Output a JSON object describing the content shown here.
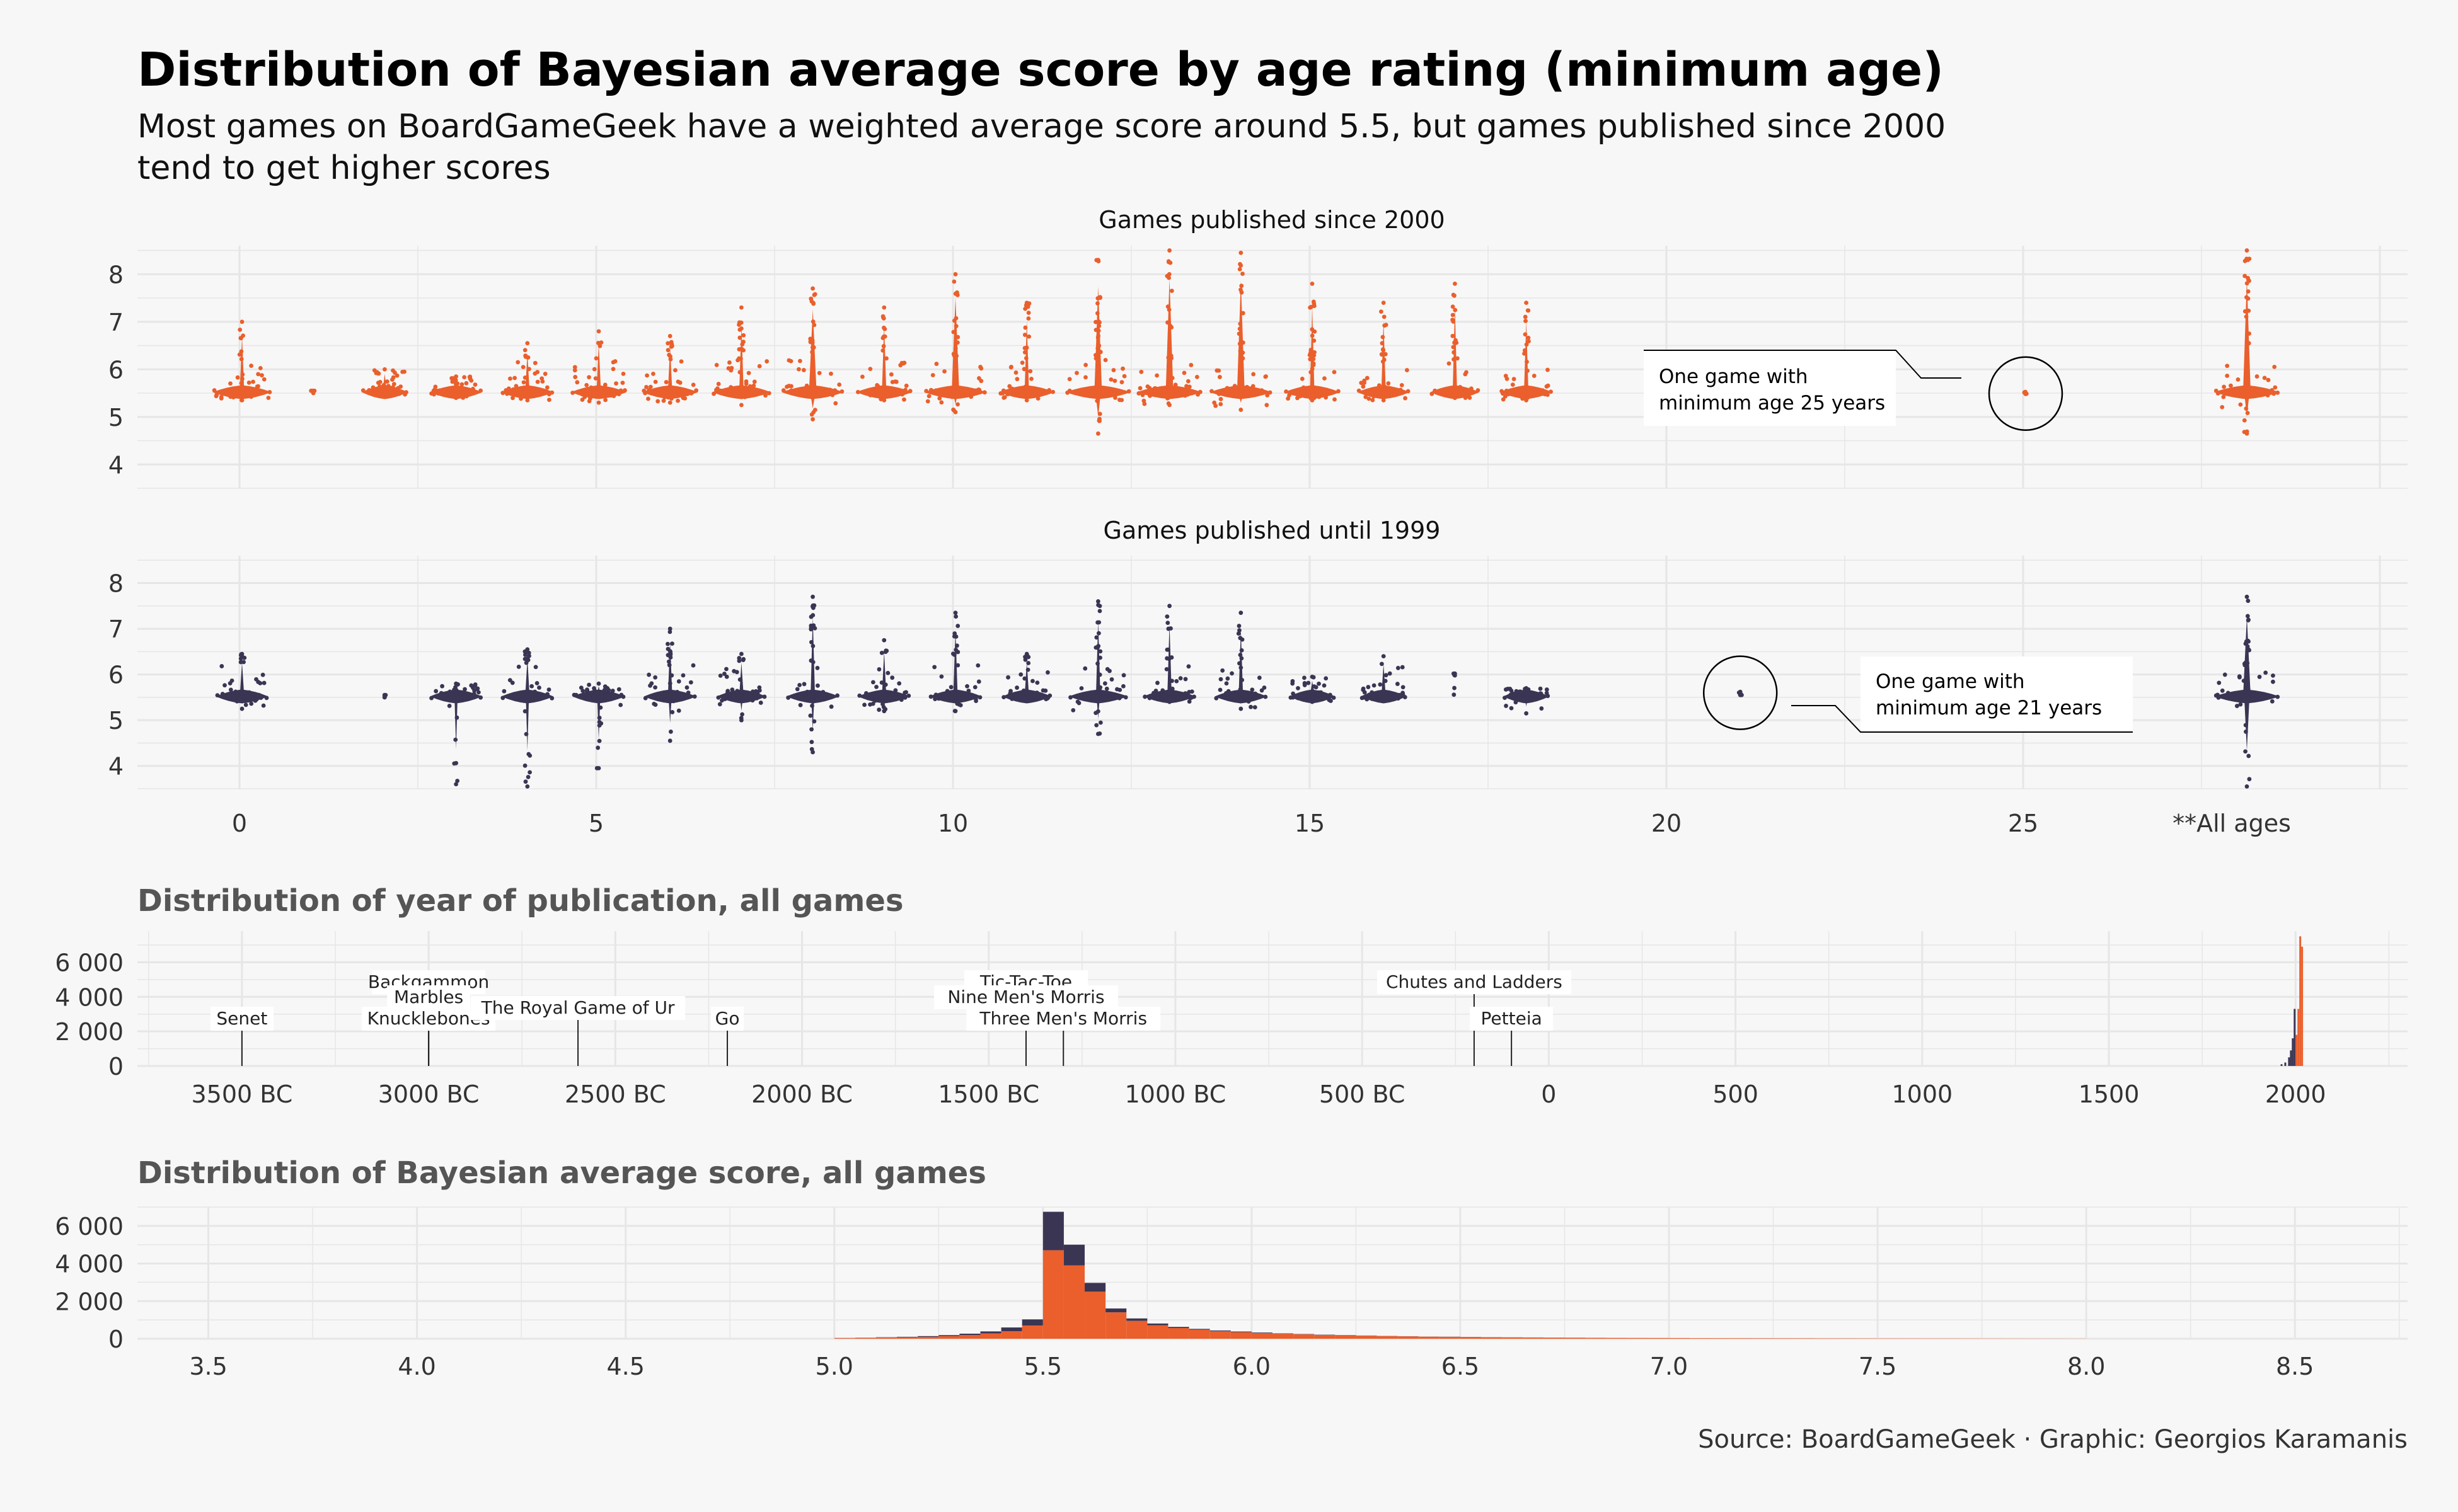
{
  "title": "Distribution of Bayesian average score by age rating (minimum age)",
  "subtitle": "Most games on BoardGameGeek have a weighted average score around 5.5, but games published since 2000 tend to get higher scores",
  "source": "Source: BoardGameGeek · Graphic: Georgios Karamanis",
  "colors": {
    "since2000": "#ea5f2c",
    "until1999": "#3b3554",
    "grid": "#e6e6e6",
    "background": "#f7f7f7"
  },
  "chart_data": [
    {
      "type": "scatter",
      "title": "Games published since 2000",
      "y_ticks": [
        4,
        5,
        6,
        7,
        8
      ],
      "ylim": [
        3.5,
        8.6
      ],
      "x_ticks": [
        0,
        5,
        10,
        15,
        20,
        25
      ],
      "x_extra_tick": "**All ages",
      "groups": [
        {
          "age": 0,
          "max_width": 0.9,
          "min": 5.35,
          "max": 7.0
        },
        {
          "age": 1,
          "max_width": 0.1,
          "min": 5.5,
          "max": 5.55
        },
        {
          "age": 2,
          "max_width": 0.7,
          "min": 5.45,
          "max": 6.0
        },
        {
          "age": 3,
          "max_width": 0.8,
          "min": 5.4,
          "max": 5.85
        },
        {
          "age": 4,
          "max_width": 0.8,
          "min": 5.35,
          "max": 6.55
        },
        {
          "age": 5,
          "max_width": 0.85,
          "min": 5.3,
          "max": 6.8
        },
        {
          "age": 6,
          "max_width": 0.85,
          "min": 5.3,
          "max": 6.7
        },
        {
          "age": 7,
          "max_width": 0.9,
          "min": 5.25,
          "max": 7.3
        },
        {
          "age": 8,
          "max_width": 0.95,
          "min": 4.95,
          "max": 7.7
        },
        {
          "age": 9,
          "max_width": 0.85,
          "min": 5.35,
          "max": 7.3
        },
        {
          "age": 10,
          "max_width": 0.95,
          "min": 5.1,
          "max": 8.0
        },
        {
          "age": 11,
          "max_width": 0.85,
          "min": 5.35,
          "max": 7.4
        },
        {
          "age": 12,
          "max_width": 1.0,
          "min": 4.65,
          "max": 8.3
        },
        {
          "age": 13,
          "max_width": 1.0,
          "min": 5.25,
          "max": 8.5
        },
        {
          "age": 14,
          "max_width": 0.95,
          "min": 5.15,
          "max": 8.45
        },
        {
          "age": 15,
          "max_width": 0.85,
          "min": 5.35,
          "max": 7.8
        },
        {
          "age": 16,
          "max_width": 0.8,
          "min": 5.35,
          "max": 7.4
        },
        {
          "age": 17,
          "max_width": 0.75,
          "min": 5.4,
          "max": 7.8
        },
        {
          "age": 18,
          "max_width": 0.8,
          "min": 5.35,
          "max": 7.4
        },
        {
          "age": 25,
          "max_width": 0.05,
          "min": 5.48,
          "max": 5.5
        },
        {
          "age": "**All ages",
          "max_width": 1.0,
          "min": 4.65,
          "max": 8.5
        }
      ],
      "annotation": "One game with\n minimum age 25 years"
    },
    {
      "type": "scatter",
      "title": "Games published until 1999",
      "y_ticks": [
        4,
        5,
        6,
        7,
        8
      ],
      "ylim": [
        3.5,
        8.6
      ],
      "x_ticks": [
        0,
        5,
        10,
        15,
        20,
        25
      ],
      "x_extra_tick": "**All ages",
      "groups": [
        {
          "age": 0,
          "max_width": 0.8,
          "min": 5.25,
          "max": 6.45
        },
        {
          "age": 2,
          "max_width": 0.05,
          "min": 5.5,
          "max": 5.55
        },
        {
          "age": 3,
          "max_width": 0.8,
          "min": 3.6,
          "max": 5.8
        },
        {
          "age": 4,
          "max_width": 0.8,
          "min": 3.55,
          "max": 6.55
        },
        {
          "age": 5,
          "max_width": 0.8,
          "min": 3.95,
          "max": 5.8
        },
        {
          "age": 6,
          "max_width": 0.8,
          "min": 4.55,
          "max": 7.0
        },
        {
          "age": 7,
          "max_width": 0.75,
          "min": 5.0,
          "max": 6.45
        },
        {
          "age": 8,
          "max_width": 0.8,
          "min": 4.3,
          "max": 7.7
        },
        {
          "age": 9,
          "max_width": 0.8,
          "min": 5.2,
          "max": 6.75
        },
        {
          "age": 10,
          "max_width": 0.8,
          "min": 5.2,
          "max": 7.35
        },
        {
          "age": 11,
          "max_width": 0.75,
          "min": 5.45,
          "max": 6.45
        },
        {
          "age": 12,
          "max_width": 0.9,
          "min": 4.7,
          "max": 7.6
        },
        {
          "age": 13,
          "max_width": 0.8,
          "min": 5.4,
          "max": 7.5
        },
        {
          "age": 14,
          "max_width": 0.8,
          "min": 5.25,
          "max": 7.35
        },
        {
          "age": 15,
          "max_width": 0.7,
          "min": 5.4,
          "max": 5.95
        },
        {
          "age": 16,
          "max_width": 0.7,
          "min": 5.45,
          "max": 6.4
        },
        {
          "age": 17,
          "max_width": 0.05,
          "min": 5.98,
          "max": 6.02
        },
        {
          "age": 18,
          "max_width": 0.7,
          "min": 5.15,
          "max": 5.7
        },
        {
          "age": 21,
          "max_width": 0.05,
          "min": 5.58,
          "max": 5.62
        },
        {
          "age": "**All ages",
          "max_width": 1.0,
          "min": 3.55,
          "max": 7.7
        }
      ],
      "annotation": "One game with\nminimum age 21 years"
    },
    {
      "type": "bar",
      "title": "Distribution of year of publication, all games",
      "x_ticks": [
        -3500,
        -3000,
        -2500,
        -2000,
        -1500,
        -1000,
        -500,
        0,
        500,
        1000,
        1500,
        2000
      ],
      "x_tick_labels": [
        "3500 BC",
        "3000 BC",
        "2500 BC",
        "2000 BC",
        "1500 BC",
        "1000 BC",
        "500 BC",
        "0",
        "500",
        "1000",
        "1500",
        "2000"
      ],
      "xlim": [
        -3780,
        2300
      ],
      "y_ticks": [
        0,
        2000,
        4000,
        6000
      ],
      "y_tick_labels": [
        "0",
        "2 000",
        "4 000",
        "6 000"
      ],
      "ylim": [
        0,
        7800
      ],
      "series": [
        {
          "name": "until 1999",
          "x": [
            1960,
            1970,
            1980,
            1985,
            1990,
            1995
          ],
          "values": [
            100,
            200,
            500,
            900,
            1600,
            3300
          ]
        },
        {
          "name": "since 2000",
          "x": [
            2000,
            2005,
            2010,
            2015
          ],
          "values": [
            1800,
            3300,
            7500,
            6900
          ]
        }
      ],
      "annotations": [
        {
          "year": -3500,
          "label": "Senet",
          "level": 1
        },
        {
          "year": -3000,
          "label": "Backgammon",
          "level": 4
        },
        {
          "year": -3000,
          "label": "Marbles",
          "level": 3
        },
        {
          "year": -3000,
          "label": "Knucklebones",
          "level": 1
        },
        {
          "year": -2600,
          "label": "The Royal Game of Ur",
          "level": 2
        },
        {
          "year": -2200,
          "label": "Go",
          "level": 1
        },
        {
          "year": -1400,
          "label": "Tic-Tac-Toe",
          "level": 4
        },
        {
          "year": -1400,
          "label": "Nine Men's Morris",
          "level": 3
        },
        {
          "year": -1300,
          "label": "Three Men's Morris",
          "level": 1
        },
        {
          "year": -200,
          "label": "Chutes and Ladders",
          "level": 4
        },
        {
          "year": -100,
          "label": "Petteia",
          "level": 1
        }
      ]
    },
    {
      "type": "bar",
      "title": "Distribution of Bayesian average score, all games",
      "x_ticks": [
        3.5,
        4.0,
        4.5,
        5.0,
        5.5,
        6.0,
        6.5,
        7.0,
        7.5,
        8.0,
        8.5
      ],
      "x_tick_labels": [
        "3.5",
        "4.0",
        "4.5",
        "5.0",
        "5.5",
        "6.0",
        "6.5",
        "7.0",
        "7.5",
        "8.0",
        "8.5"
      ],
      "xlim": [
        3.33,
        8.77
      ],
      "y_ticks": [
        0,
        2000,
        4000,
        6000
      ],
      "y_tick_labels": [
        "0",
        "2 000",
        "4 000",
        "6 000"
      ],
      "ylim": [
        0,
        7000
      ],
      "bin_width": 0.05,
      "bins": [
        5.0,
        5.05,
        5.1,
        5.15,
        5.2,
        5.25,
        5.3,
        5.35,
        5.4,
        5.45,
        5.5,
        5.55,
        5.6,
        5.65,
        5.7,
        5.75,
        5.8,
        5.85,
        5.9,
        5.95,
        6.0,
        6.05,
        6.1,
        6.15,
        6.2,
        6.25,
        6.3,
        6.35,
        6.4,
        6.45,
        6.5,
        6.55,
        6.6,
        6.65,
        6.7,
        6.75,
        6.8,
        6.85,
        6.9,
        6.95,
        7.0,
        7.05,
        7.1,
        7.15,
        7.2,
        7.25,
        7.3,
        7.35,
        7.4,
        7.45,
        7.5,
        7.55,
        7.6,
        7.65,
        7.7,
        7.75,
        7.8,
        7.85,
        7.9,
        7.95
      ],
      "series": [
        {
          "name": "until 1999",
          "values": [
            10,
            15,
            20,
            25,
            40,
            55,
            70,
            110,
            200,
            330,
            2050,
            1100,
            470,
            210,
            130,
            90,
            60,
            45,
            40,
            35,
            30,
            25,
            20,
            15,
            15,
            12,
            10,
            10,
            8,
            8,
            8,
            6,
            6,
            5,
            5,
            5,
            4,
            4,
            3,
            3,
            3,
            3,
            2,
            2,
            2,
            2,
            2,
            1,
            1,
            1,
            1,
            1,
            1,
            1,
            1,
            0,
            0,
            0,
            0,
            0
          ]
        },
        {
          "name": "since 2000",
          "values": [
            30,
            40,
            60,
            80,
            100,
            140,
            200,
            280,
            400,
            700,
            4700,
            3900,
            2500,
            1400,
            950,
            720,
            570,
            480,
            400,
            350,
            300,
            260,
            230,
            200,
            180,
            160,
            140,
            125,
            110,
            100,
            90,
            80,
            72,
            65,
            58,
            52,
            48,
            44,
            40,
            36,
            33,
            30,
            28,
            26,
            24,
            22,
            20,
            18,
            17,
            16,
            15,
            14,
            13,
            12,
            11,
            10,
            9,
            8,
            7,
            6
          ]
        }
      ]
    }
  ]
}
